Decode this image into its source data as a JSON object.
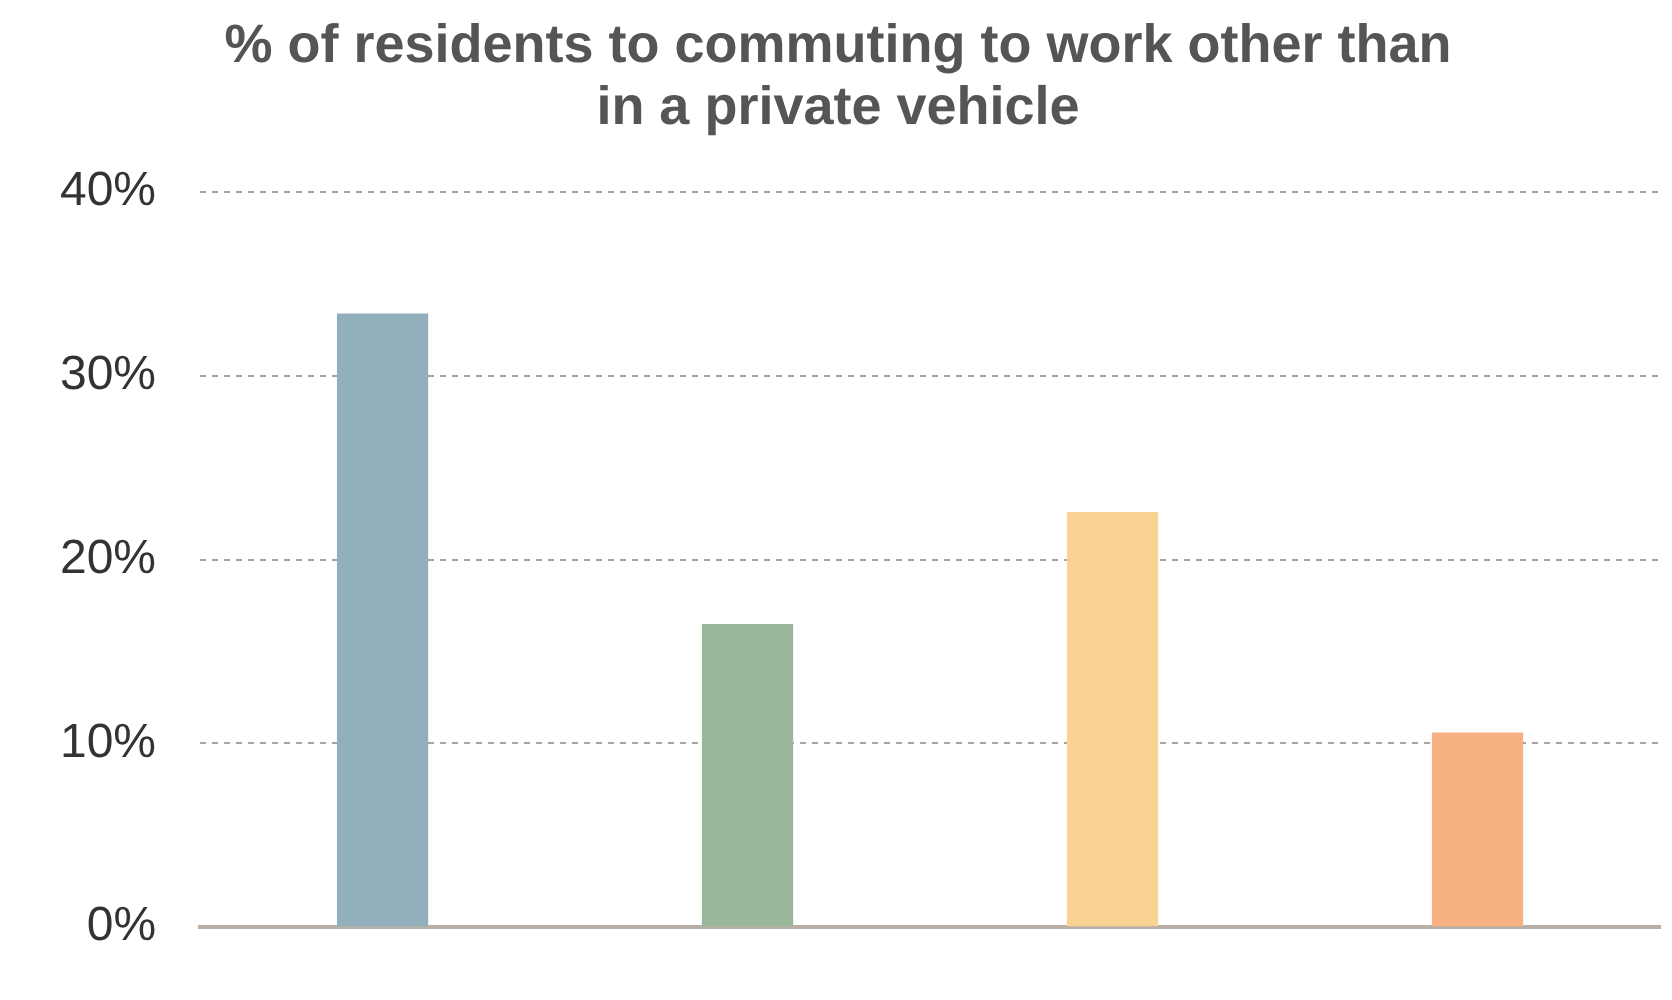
{
  "chart_data": {
    "type": "bar",
    "title": [
      "% of residents to commuting to work other than",
      "in a private vehicle"
    ],
    "categories": [
      null,
      null,
      null,
      null
    ],
    "values": [
      33.4,
      16.5,
      22.6,
      10.6
    ],
    "colors": [
      "#91afbc",
      "#99b79b",
      "#fad294",
      "#f7b081"
    ],
    "ylim": [
      0,
      40
    ],
    "yticks": [
      {
        "value": 0,
        "label": "0%"
      },
      {
        "value": 10,
        "label": "10%"
      },
      {
        "value": 20,
        "label": "20%"
      },
      {
        "value": 30,
        "label": "30%"
      },
      {
        "value": 40,
        "label": "40%"
      }
    ],
    "grid": "y",
    "legend": false
  }
}
